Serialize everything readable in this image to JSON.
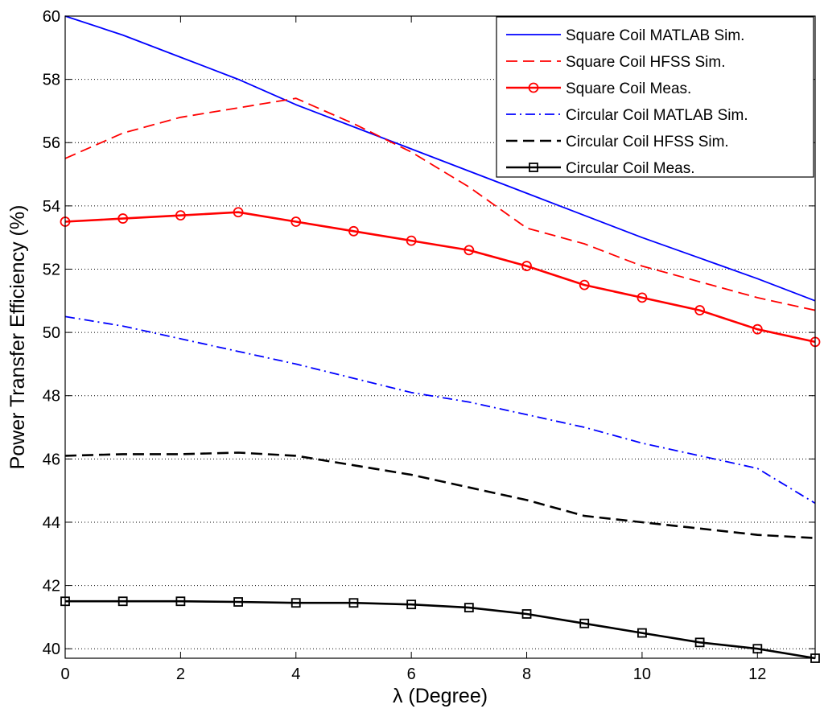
{
  "chart_data": {
    "type": "line",
    "xlabel": "λ (Degree)",
    "ylabel": "Power Transfer Efficiency (%)",
    "xlim": [
      0,
      13
    ],
    "ylim": [
      39.7,
      60
    ],
    "xticks": [
      0,
      2,
      4,
      6,
      8,
      10,
      12
    ],
    "yticks": [
      40,
      42,
      44,
      46,
      48,
      50,
      52,
      54,
      56,
      58,
      60
    ],
    "grid": "horizontal dotted",
    "legend_position": "top-right",
    "series": [
      {
        "name": "Square Coil MATLAB Sim.",
        "color": "#0000ff",
        "dash": "solid",
        "marker": "none",
        "x": [
          0,
          1,
          2,
          3,
          4,
          5,
          6,
          7,
          8,
          9,
          10,
          11,
          12,
          13
        ],
        "y": [
          60.0,
          59.4,
          58.7,
          58.0,
          57.2,
          56.5,
          55.8,
          55.1,
          54.4,
          53.7,
          53.0,
          52.35,
          51.7,
          51.0
        ]
      },
      {
        "name": "Square Coil HFSS Sim.",
        "color": "#ff0000",
        "dash": "dashed",
        "marker": "none",
        "x": [
          0,
          1,
          2,
          3,
          4,
          5,
          6,
          7,
          8,
          9,
          10,
          11,
          12,
          13
        ],
        "y": [
          55.5,
          56.3,
          56.8,
          57.1,
          57.4,
          56.6,
          55.7,
          54.6,
          53.3,
          52.8,
          52.1,
          51.6,
          51.1,
          50.7
        ]
      },
      {
        "name": "Square Coil Meas.",
        "color": "#ff0000",
        "dash": "solid",
        "marker": "circle",
        "x": [
          0,
          1,
          2,
          3,
          4,
          5,
          6,
          7,
          8,
          9,
          10,
          11,
          12,
          13
        ],
        "y": [
          53.5,
          53.6,
          53.7,
          53.8,
          53.5,
          53.2,
          52.9,
          52.6,
          52.1,
          51.5,
          51.1,
          50.7,
          50.1,
          49.7
        ]
      },
      {
        "name": "Circular Coil MATLAB Sim.",
        "color": "#0000ff",
        "dash": "dashdot",
        "marker": "none",
        "x": [
          0,
          1,
          2,
          3,
          4,
          5,
          6,
          7,
          8,
          9,
          10,
          11,
          12,
          13
        ],
        "y": [
          50.5,
          50.2,
          49.8,
          49.4,
          49.0,
          48.55,
          48.1,
          47.8,
          47.4,
          47.0,
          46.5,
          46.1,
          45.7,
          44.6
        ]
      },
      {
        "name": "Circular Coil HFSS Sim.",
        "color": "#000000",
        "dash": "dashed",
        "marker": "none",
        "x": [
          0,
          1,
          2,
          3,
          4,
          5,
          6,
          7,
          8,
          9,
          10,
          11,
          12,
          13
        ],
        "y": [
          46.1,
          46.15,
          46.15,
          46.2,
          46.1,
          45.8,
          45.5,
          45.1,
          44.7,
          44.2,
          44.0,
          43.8,
          43.6,
          43.5
        ]
      },
      {
        "name": "Circular Coil Meas.",
        "color": "#000000",
        "dash": "solid",
        "marker": "square",
        "x": [
          0,
          1,
          2,
          3,
          4,
          5,
          6,
          7,
          8,
          9,
          10,
          11,
          12,
          13
        ],
        "y": [
          41.5,
          41.5,
          41.5,
          41.48,
          41.45,
          41.45,
          41.4,
          41.3,
          41.1,
          40.8,
          40.5,
          40.2,
          40.0,
          39.7
        ]
      }
    ]
  }
}
